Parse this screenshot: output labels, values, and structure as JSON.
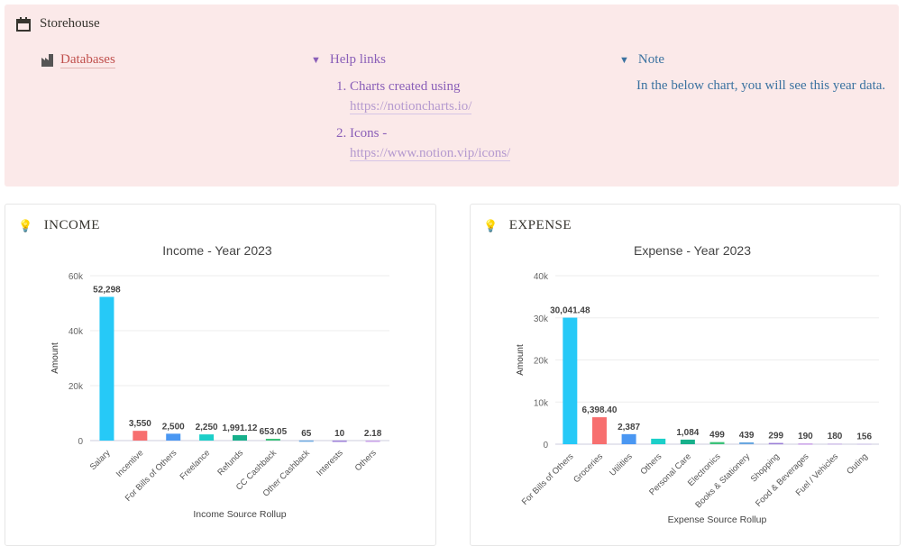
{
  "header": {
    "title": "Storehouse",
    "databases_link": "Databases",
    "help": {
      "title": "Help links",
      "items": [
        {
          "num": "1.",
          "text": "Charts created using",
          "link": "https://notioncharts.io/"
        },
        {
          "num": "2.",
          "text": "Icons -",
          "link": "https://www.notion.vip/icons/"
        }
      ]
    },
    "note": {
      "title": "Note",
      "text": "In the below chart, you will see this year data."
    }
  },
  "cards": {
    "income": "INCOME",
    "expense": "EXPENSE"
  },
  "chart_data": [
    {
      "type": "bar",
      "title": "Income - Year 2023",
      "xlabel": "Income Source Rollup",
      "ylabel": "Amount",
      "ylim": [
        0,
        60000
      ],
      "yticks": [
        "0",
        "20k",
        "40k",
        "60k"
      ],
      "categories": [
        "Salary",
        "Incentive",
        "For Bills of Others",
        "Freelance",
        "Refunds",
        "CC Cashback",
        "Other Cashback",
        "Interests",
        "Others"
      ],
      "values": [
        52298,
        3550,
        2500,
        2250,
        1991.12,
        653.05,
        65,
        10,
        2.18
      ],
      "labels": [
        "52,298",
        "3,550",
        "2,500",
        "2,250",
        "1,991.12",
        "653.05",
        "65",
        "10",
        "2.18"
      ],
      "colors": [
        "#26c9f7",
        "#f76f6f",
        "#4a97f2",
        "#1ccfc9",
        "#17b08b",
        "#3cc27a",
        "#6aa8e0",
        "#9c7fd8",
        "#c8a0e8"
      ]
    },
    {
      "type": "bar",
      "title": "Expense - Year 2023",
      "xlabel": "Expense Source Rollup",
      "ylabel": "Amount",
      "ylim": [
        0,
        40000
      ],
      "yticks": [
        "0",
        "10k",
        "20k",
        "30k",
        "40k"
      ],
      "categories": [
        "For Bills of Others",
        "Groceries",
        "Utilities",
        "Others",
        "Personal Care",
        "Electronics",
        "Books & Stationery",
        "Shopping",
        "Food & Beverages",
        "Fuel / Vehicles",
        "Outing"
      ],
      "values": [
        30041.48,
        6398.4,
        2387,
        1300,
        1084,
        499,
        439,
        299,
        190,
        180,
        156
      ],
      "labels": [
        "30,041.48",
        "6,398.40",
        "2,387",
        "",
        "1,084",
        "499",
        "439",
        "299",
        "190",
        "180",
        "156"
      ],
      "colors": [
        "#26c9f7",
        "#f76f6f",
        "#4a97f2",
        "#1ccfc9",
        "#17b08b",
        "#3cc27a",
        "#6aa8e0",
        "#9c7fd8",
        "#c8a0e8",
        "#d0c0e8",
        "#d8d0ec"
      ]
    }
  ]
}
